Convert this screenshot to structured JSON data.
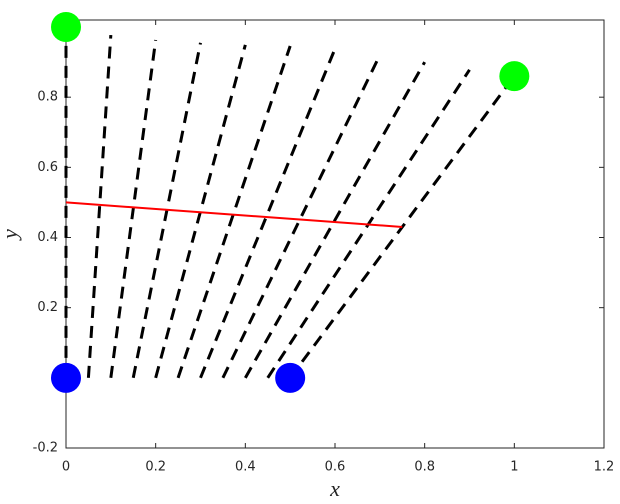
{
  "chart_data": {
    "type": "line",
    "xlabel": "x",
    "ylabel": "y",
    "xlim": [
      0,
      1.2
    ],
    "ylim": [
      -0.2,
      1.02
    ],
    "xticks": [
      0,
      0.2,
      0.4,
      0.6,
      0.8,
      1,
      1.2
    ],
    "yticks": [
      -0.2,
      0.2,
      0.4,
      0.6,
      0.8
    ],
    "series": [
      {
        "color": "#000000",
        "style": "dashed",
        "x": [
          0,
          0
        ],
        "values": [
          0,
          1
        ]
      },
      {
        "color": "#000000",
        "style": "dashed",
        "x": [
          0.05,
          0.1
        ],
        "values": [
          0,
          0.977
        ]
      },
      {
        "color": "#000000",
        "style": "dashed",
        "x": [
          0.1,
          0.2
        ],
        "values": [
          0,
          0.963
        ]
      },
      {
        "color": "#000000",
        "style": "dashed",
        "x": [
          0.15,
          0.3
        ],
        "values": [
          0,
          0.955
        ]
      },
      {
        "color": "#000000",
        "style": "dashed",
        "x": [
          0.2,
          0.4
        ],
        "values": [
          0,
          0.949
        ]
      },
      {
        "color": "#000000",
        "style": "dashed",
        "x": [
          0.25,
          0.5
        ],
        "values": [
          0,
          0.946
        ]
      },
      {
        "color": "#000000",
        "style": "dashed",
        "x": [
          0.3,
          0.6
        ],
        "values": [
          0,
          0.938
        ]
      },
      {
        "color": "#000000",
        "style": "dashed",
        "x": [
          0.35,
          0.7
        ],
        "values": [
          0,
          0.92
        ]
      },
      {
        "color": "#000000",
        "style": "dashed",
        "x": [
          0.4,
          0.8
        ],
        "values": [
          0,
          0.9
        ]
      },
      {
        "color": "#000000",
        "style": "dashed",
        "x": [
          0.45,
          0.9
        ],
        "values": [
          0,
          0.878
        ]
      },
      {
        "color": "#000000",
        "style": "dashed",
        "x": [
          0.5,
          1
        ],
        "values": [
          0,
          0.86
        ]
      },
      {
        "color": "#ff0000",
        "style": "solid",
        "x": [
          0,
          0.75
        ],
        "values": [
          0.5,
          0.43
        ]
      },
      {
        "color": "#00ff00",
        "style": "marker",
        "x": [
          0,
          1
        ],
        "values": [
          1,
          0.86
        ]
      },
      {
        "color": "#0000ff",
        "style": "marker",
        "x": [
          0,
          0.5
        ],
        "values": [
          0,
          0
        ]
      }
    ]
  }
}
